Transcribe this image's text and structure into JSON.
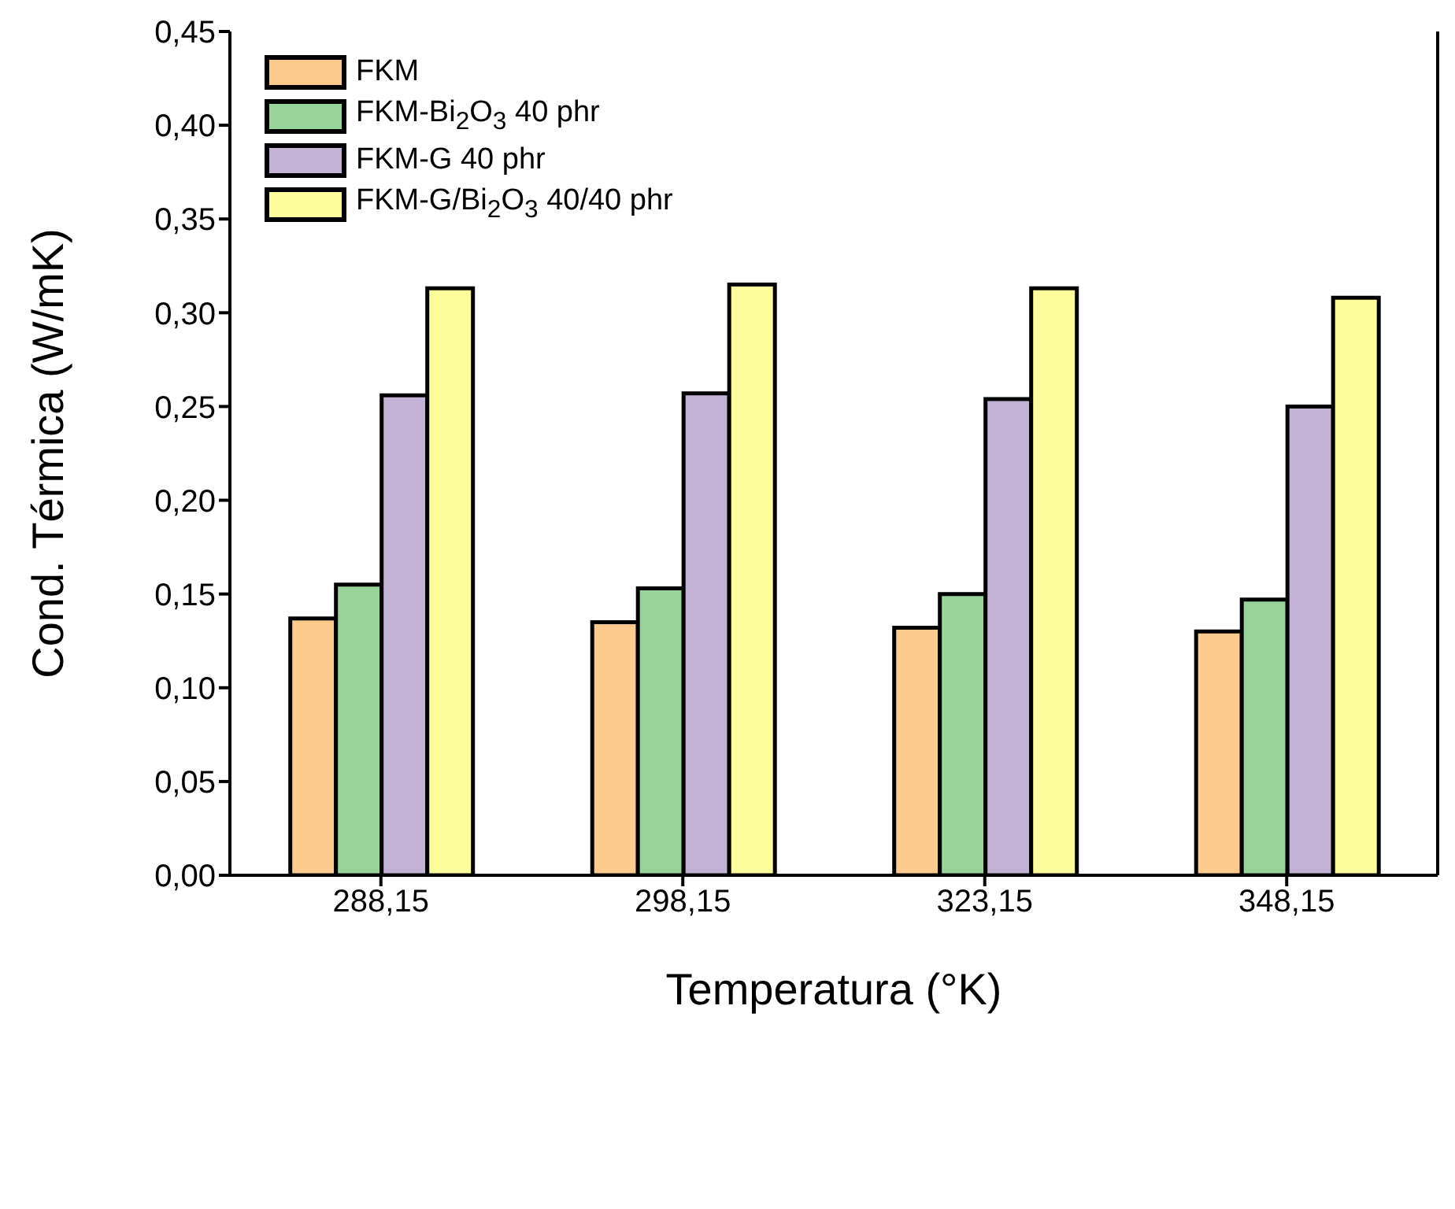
{
  "chart_data": {
    "type": "bar",
    "xlabel": "Temperatura (°K)",
    "ylabel": "Cond. Térmica (W/mK)",
    "categories": [
      "288,15",
      "298,15",
      "323,15",
      "348,15"
    ],
    "series": [
      {
        "name": "FKM",
        "color": "#fdcb8e",
        "values": [
          0.137,
          0.135,
          0.132,
          0.13
        ]
      },
      {
        "name": "FKM-Bi$_{2}$O$_{3}$ 40 phr",
        "color": "#98d49a",
        "values": [
          0.155,
          0.153,
          0.15,
          0.147
        ]
      },
      {
        "name": "FKM-G 40 phr",
        "color": "#c4b2d6",
        "values": [
          0.256,
          0.257,
          0.254,
          0.25
        ]
      },
      {
        "name": "FKM-G/Bi$_{2}$O$_{3}$ 40/40 phr",
        "color": "#fdfd9c",
        "values": [
          0.313,
          0.315,
          0.313,
          0.308
        ]
      }
    ],
    "ylim": [
      0,
      0.45
    ],
    "yticks": [
      {
        "value": 0,
        "label": "0,00"
      },
      {
        "value": 0.05,
        "label": "0,05"
      },
      {
        "value": 0.1,
        "label": "0,10"
      },
      {
        "value": 0.15,
        "label": "0,15"
      },
      {
        "value": 0.2,
        "label": "0,20"
      },
      {
        "value": 0.25,
        "label": "0,25"
      },
      {
        "value": 0.3,
        "label": "0,30"
      },
      {
        "value": 0.35,
        "label": "0,35"
      },
      {
        "value": 0.4,
        "label": "0,40"
      },
      {
        "value": 0.45,
        "label": "0,45"
      }
    ],
    "grid": false,
    "legend": "top left"
  }
}
